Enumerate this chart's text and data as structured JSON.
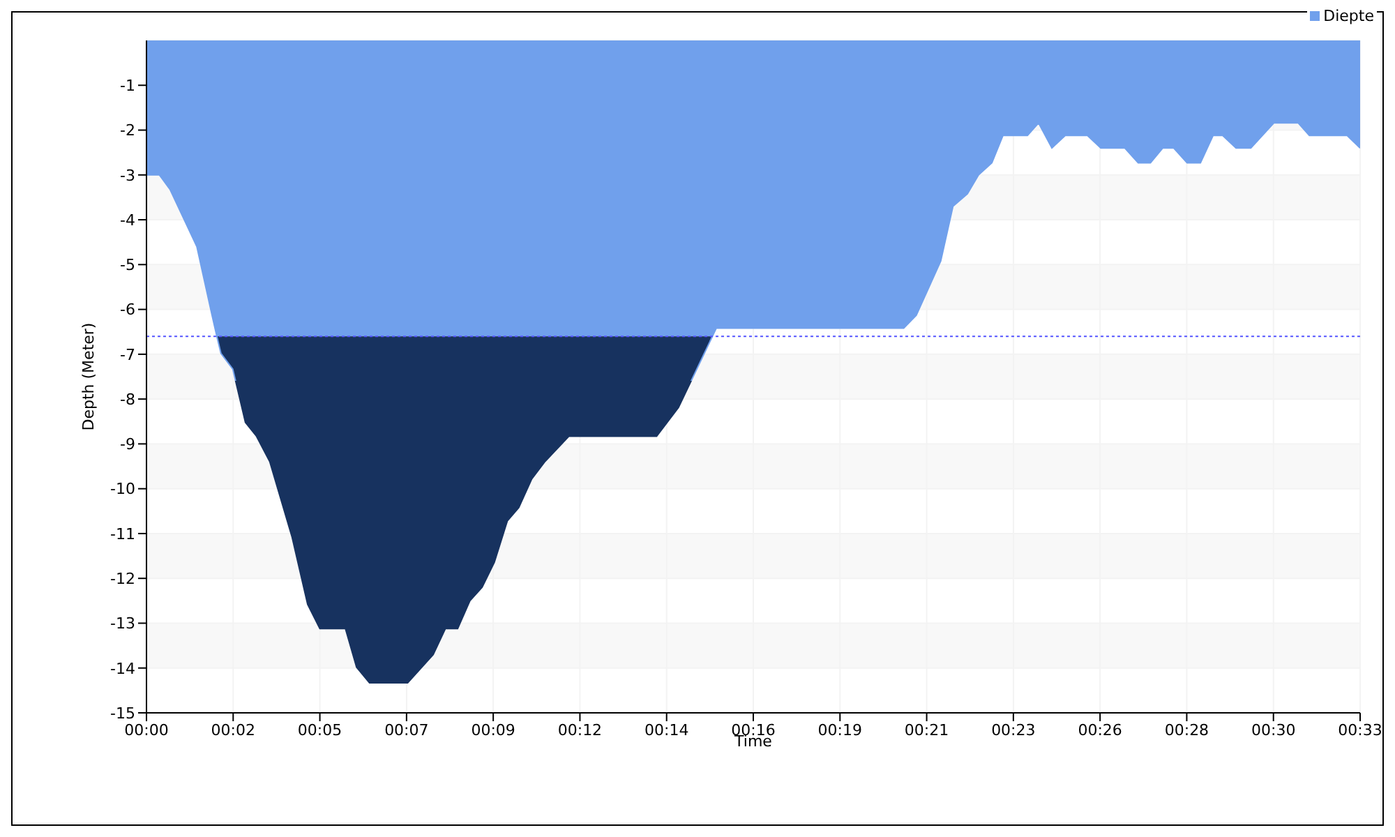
{
  "chart_data": {
    "type": "area",
    "xlabel": "Time",
    "ylabel": "Depth (Meter)",
    "x": [
      0,
      0.35,
      0.64,
      1.36,
      1.77,
      1.9,
      2.01,
      2.33,
      2.67,
      2.97,
      3.33,
      3.93,
      4.35,
      4.68,
      5.37,
      5.67,
      6.02,
      7.05,
      7.74,
      8.07,
      8.4,
      8.73,
      9.06,
      9.39,
      9.74,
      10.05,
      10.4,
      10.76,
      11.4,
      13.77,
      14.36,
      15.38,
      20.44,
      20.78,
      21.44,
      21.77,
      22.16,
      22.46,
      22.82,
      23.12,
      23.78,
      24.08,
      24.44,
      24.8,
      25.4,
      25.76,
      26.41,
      26.77,
      27.1,
      27.43,
      27.73,
      28.09,
      28.45,
      28.79,
      29.05,
      29.41,
      29.81,
      30.43,
      31.09,
      31.39,
      32.41,
      32.76
    ],
    "series": [
      {
        "name": "Diepte",
        "color": "#70a0ec",
        "values": [
          -3,
          -3,
          -3.33,
          -4.6,
          -6.13,
          -6.6,
          -6.98,
          -7.33,
          -8.52,
          -8.83,
          -9.4,
          -11.08,
          -12.58,
          -13.12,
          -13.12,
          -13.98,
          -14.33,
          -14.33,
          -13.7,
          -13.12,
          -13.12,
          -12.5,
          -12.2,
          -11.64,
          -10.72,
          -10.42,
          -9.78,
          -9.39,
          -8.83,
          -8.83,
          -8.19,
          -6.42,
          -6.42,
          -6.13,
          -4.92,
          -3.7,
          -3.42,
          -3,
          -2.73,
          -2.12,
          -2.12,
          -1.84,
          -2.4,
          -2.12,
          -2.12,
          -2.4,
          -2.4,
          -2.73,
          -2.73,
          -2.4,
          -2.4,
          -2.73,
          -2.73,
          -2.12,
          -2.12,
          -2.4,
          -2.4,
          -1.84,
          -1.84,
          -2.12,
          -2.12,
          -2.4
        ]
      }
    ],
    "xlim": [
      0,
      32.76
    ],
    "xticks": [
      {
        "value": 0,
        "label": "00:00"
      },
      {
        "value": 2.34,
        "label": "00:02"
      },
      {
        "value": 4.68,
        "label": "00:05"
      },
      {
        "value": 7.02,
        "label": "00:07"
      },
      {
        "value": 9.36,
        "label": "00:09"
      },
      {
        "value": 11.7,
        "label": "00:12"
      },
      {
        "value": 14.04,
        "label": "00:14"
      },
      {
        "value": 16.38,
        "label": "00:16"
      },
      {
        "value": 18.72,
        "label": "00:19"
      },
      {
        "value": 21.06,
        "label": "00:21"
      },
      {
        "value": 23.4,
        "label": "00:23"
      },
      {
        "value": 25.74,
        "label": "00:26"
      },
      {
        "value": 28.08,
        "label": "00:28"
      },
      {
        "value": 30.42,
        "label": "00:30"
      },
      {
        "value": 32.76,
        "label": "00:33"
      }
    ],
    "ylim": [
      -15,
      0
    ],
    "yticks": [
      -1,
      -2,
      -3,
      -4,
      -5,
      -6,
      -7,
      -8,
      -9,
      -10,
      -11,
      -12,
      -13,
      -14,
      -15
    ],
    "ref_lines": [
      {
        "axis": "y",
        "value": -6.6,
        "color": "#5555ff",
        "line_style": "dotted"
      }
    ],
    "bands": [
      {
        "axis": "y",
        "from": -15,
        "to": -6.6,
        "color": "#17325f"
      }
    ],
    "grid": true,
    "legend": "top right"
  }
}
